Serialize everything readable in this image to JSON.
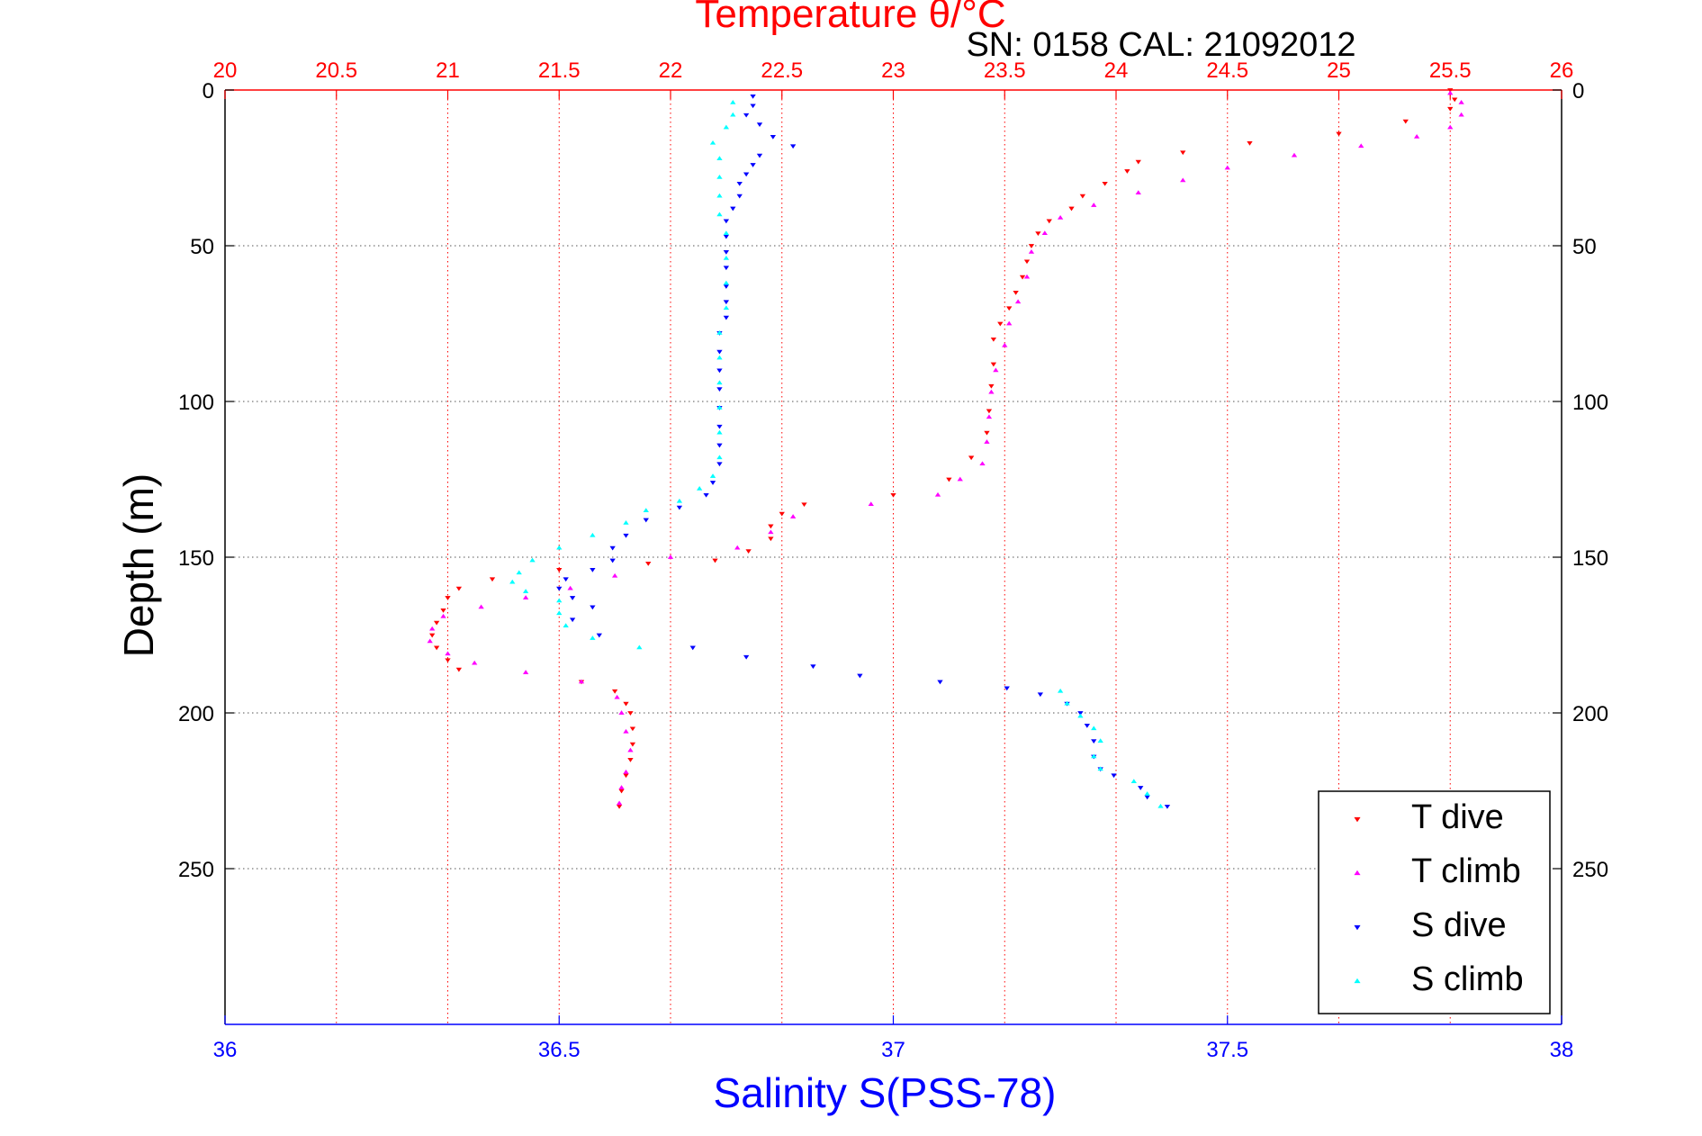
{
  "chart_data": {
    "type": "scatter",
    "title": "Temperature θ/°C",
    "subtitle": "SN: 0158  CAL: 21092012",
    "ylabel": "Depth (m)",
    "xlabel_bottom": "Salinity S(PSS-78)",
    "xlabel_top": "Temperature θ/°C",
    "y_axis": {
      "ylim": [
        0,
        300
      ],
      "reversed": true,
      "ticks": [
        0,
        50,
        100,
        150,
        200,
        250
      ],
      "tick_labels": [
        "0",
        "50",
        "100",
        "150",
        "200",
        "250"
      ]
    },
    "x_top_axis": {
      "xlim": [
        20,
        26
      ],
      "ticks": [
        20,
        20.5,
        21,
        21.5,
        22,
        22.5,
        23,
        23.5,
        24,
        24.5,
        25,
        25.5,
        26
      ],
      "tick_labels": [
        "20",
        "20.5",
        "21",
        "21.5",
        "22",
        "22.5",
        "23",
        "23.5",
        "24",
        "24.5",
        "25",
        "25.5",
        "26"
      ],
      "color": "#ff0000"
    },
    "x_bottom_axis": {
      "xlim": [
        36,
        38
      ],
      "ticks": [
        36,
        36.5,
        37,
        37.5,
        38
      ],
      "tick_labels": [
        "36",
        "36.5",
        "37",
        "37.5",
        "38"
      ],
      "color": "#0000ff"
    },
    "grid": true,
    "legend_position": "bottom-right",
    "colors": {
      "t_dive": "#ff0000",
      "t_climb": "#ff00ff",
      "s_dive": "#0000ff",
      "s_climb": "#00ffff",
      "grid_temperature": "#ff0000",
      "grid_depth": "#555555"
    },
    "series": [
      {
        "name": "T dive",
        "axis": "temperature",
        "marker": "triangle-down",
        "color": "#ff0000",
        "points": [
          [
            25.5,
            0
          ],
          [
            25.52,
            3
          ],
          [
            25.5,
            6
          ],
          [
            25.3,
            10
          ],
          [
            25.0,
            14
          ],
          [
            24.6,
            17
          ],
          [
            24.3,
            20
          ],
          [
            24.1,
            23
          ],
          [
            24.05,
            26
          ],
          [
            23.95,
            30
          ],
          [
            23.85,
            34
          ],
          [
            23.8,
            38
          ],
          [
            23.7,
            42
          ],
          [
            23.65,
            46
          ],
          [
            23.62,
            50
          ],
          [
            23.6,
            55
          ],
          [
            23.58,
            60
          ],
          [
            23.55,
            65
          ],
          [
            23.52,
            70
          ],
          [
            23.48,
            75
          ],
          [
            23.45,
            80
          ],
          [
            23.45,
            88
          ],
          [
            23.44,
            95
          ],
          [
            23.43,
            103
          ],
          [
            23.42,
            110
          ],
          [
            23.35,
            118
          ],
          [
            23.25,
            125
          ],
          [
            23.0,
            130
          ],
          [
            22.6,
            133
          ],
          [
            22.5,
            136
          ],
          [
            22.45,
            140
          ],
          [
            22.45,
            144
          ],
          [
            22.35,
            148
          ],
          [
            22.2,
            151
          ],
          [
            21.9,
            152
          ],
          [
            21.5,
            154
          ],
          [
            21.2,
            157
          ],
          [
            21.05,
            160
          ],
          [
            21.0,
            163
          ],
          [
            20.98,
            167
          ],
          [
            20.95,
            171
          ],
          [
            20.93,
            175
          ],
          [
            20.95,
            179
          ],
          [
            21.0,
            183
          ],
          [
            21.05,
            186
          ],
          [
            21.6,
            190
          ],
          [
            21.75,
            193
          ],
          [
            21.8,
            197
          ],
          [
            21.82,
            200
          ],
          [
            21.83,
            205
          ],
          [
            21.83,
            210
          ],
          [
            21.82,
            215
          ],
          [
            21.8,
            220
          ],
          [
            21.78,
            225
          ],
          [
            21.77,
            230
          ]
        ]
      },
      {
        "name": "T climb",
        "axis": "temperature",
        "marker": "triangle-up",
        "color": "#ff00ff",
        "points": [
          [
            21.77,
            229
          ],
          [
            21.78,
            224
          ],
          [
            21.8,
            219
          ],
          [
            21.82,
            212
          ],
          [
            21.8,
            206
          ],
          [
            21.78,
            200
          ],
          [
            21.76,
            195
          ],
          [
            21.6,
            190
          ],
          [
            21.35,
            187
          ],
          [
            21.12,
            184
          ],
          [
            21.0,
            181
          ],
          [
            20.92,
            177
          ],
          [
            20.93,
            173
          ],
          [
            20.98,
            169
          ],
          [
            21.15,
            166
          ],
          [
            21.35,
            163
          ],
          [
            21.55,
            160
          ],
          [
            21.75,
            156
          ],
          [
            22.0,
            150
          ],
          [
            22.3,
            147
          ],
          [
            22.45,
            142
          ],
          [
            22.55,
            137
          ],
          [
            22.9,
            133
          ],
          [
            23.2,
            130
          ],
          [
            23.3,
            125
          ],
          [
            23.4,
            120
          ],
          [
            23.42,
            113
          ],
          [
            23.43,
            105
          ],
          [
            23.44,
            97
          ],
          [
            23.46,
            90
          ],
          [
            23.5,
            82
          ],
          [
            23.52,
            75
          ],
          [
            23.56,
            68
          ],
          [
            23.6,
            60
          ],
          [
            23.62,
            52
          ],
          [
            23.68,
            46
          ],
          [
            23.75,
            41
          ],
          [
            23.9,
            37
          ],
          [
            24.1,
            33
          ],
          [
            24.3,
            29
          ],
          [
            24.5,
            25
          ],
          [
            24.8,
            21
          ],
          [
            25.1,
            18
          ],
          [
            25.35,
            15
          ],
          [
            25.5,
            12
          ],
          [
            25.55,
            8
          ],
          [
            25.55,
            4
          ],
          [
            25.5,
            1
          ]
        ]
      },
      {
        "name": "S dive",
        "axis": "salinity",
        "marker": "triangle-down",
        "color": "#0000ff",
        "points": [
          [
            36.79,
            2
          ],
          [
            36.79,
            5
          ],
          [
            36.78,
            8
          ],
          [
            36.8,
            11
          ],
          [
            36.82,
            15
          ],
          [
            36.85,
            18
          ],
          [
            36.8,
            21
          ],
          [
            36.79,
            24
          ],
          [
            36.78,
            27
          ],
          [
            36.77,
            30
          ],
          [
            36.77,
            34
          ],
          [
            36.76,
            38
          ],
          [
            36.75,
            42
          ],
          [
            36.75,
            47
          ],
          [
            36.75,
            52
          ],
          [
            36.75,
            57
          ],
          [
            36.75,
            63
          ],
          [
            36.75,
            68
          ],
          [
            36.75,
            73
          ],
          [
            36.74,
            78
          ],
          [
            36.74,
            84
          ],
          [
            36.74,
            90
          ],
          [
            36.74,
            96
          ],
          [
            36.74,
            102
          ],
          [
            36.74,
            108
          ],
          [
            36.74,
            114
          ],
          [
            36.74,
            120
          ],
          [
            36.73,
            126
          ],
          [
            36.72,
            130
          ],
          [
            36.68,
            134
          ],
          [
            36.63,
            138
          ],
          [
            36.6,
            143
          ],
          [
            36.58,
            147
          ],
          [
            36.58,
            151
          ],
          [
            36.55,
            154
          ],
          [
            36.51,
            157
          ],
          [
            36.5,
            160
          ],
          [
            36.52,
            163
          ],
          [
            36.55,
            166
          ],
          [
            36.52,
            170
          ],
          [
            36.56,
            175
          ],
          [
            36.7,
            179
          ],
          [
            36.78,
            182
          ],
          [
            36.88,
            185
          ],
          [
            36.95,
            188
          ],
          [
            37.07,
            190
          ],
          [
            37.17,
            192
          ],
          [
            37.22,
            194
          ],
          [
            37.26,
            197
          ],
          [
            37.28,
            200
          ],
          [
            37.29,
            204
          ],
          [
            37.3,
            209
          ],
          [
            37.3,
            214
          ],
          [
            37.31,
            218
          ],
          [
            37.33,
            220
          ],
          [
            37.37,
            224
          ],
          [
            37.38,
            227
          ],
          [
            37.41,
            230
          ]
        ]
      },
      {
        "name": "S climb",
        "axis": "salinity",
        "marker": "triangle-up",
        "color": "#00ffff",
        "points": [
          [
            37.4,
            230
          ],
          [
            37.38,
            226
          ],
          [
            37.36,
            222
          ],
          [
            37.31,
            218
          ],
          [
            37.3,
            214
          ],
          [
            37.31,
            209
          ],
          [
            37.3,
            205
          ],
          [
            37.28,
            201
          ],
          [
            37.26,
            197
          ],
          [
            37.25,
            193
          ],
          [
            36.62,
            179
          ],
          [
            36.55,
            176
          ],
          [
            36.51,
            172
          ],
          [
            36.5,
            168
          ],
          [
            36.5,
            164
          ],
          [
            36.45,
            161
          ],
          [
            36.43,
            158
          ],
          [
            36.44,
            155
          ],
          [
            36.46,
            151
          ],
          [
            36.5,
            147
          ],
          [
            36.55,
            143
          ],
          [
            36.6,
            139
          ],
          [
            36.63,
            135
          ],
          [
            36.68,
            132
          ],
          [
            36.71,
            128
          ],
          [
            36.73,
            124
          ],
          [
            36.74,
            118
          ],
          [
            36.74,
            110
          ],
          [
            36.74,
            102
          ],
          [
            36.74,
            94
          ],
          [
            36.74,
            86
          ],
          [
            36.74,
            78
          ],
          [
            36.75,
            70
          ],
          [
            36.75,
            62
          ],
          [
            36.75,
            54
          ],
          [
            36.75,
            46
          ],
          [
            36.74,
            40
          ],
          [
            36.74,
            34
          ],
          [
            36.74,
            28
          ],
          [
            36.74,
            22
          ],
          [
            36.73,
            17
          ],
          [
            36.75,
            12
          ],
          [
            36.76,
            8
          ],
          [
            36.76,
            4
          ]
        ]
      }
    ]
  }
}
